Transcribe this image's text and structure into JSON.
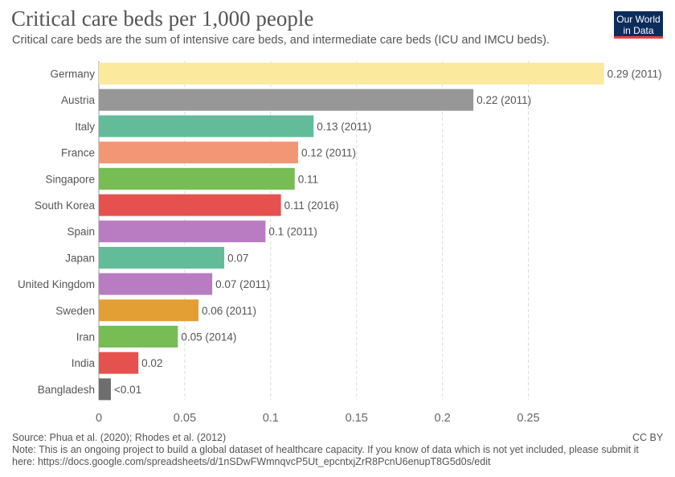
{
  "header": {
    "title": "Critical care beds per 1,000 people",
    "subtitle": "Critical care beds are the sum of intensive care beds, and intermediate care beds (ICU and IMCU beds).",
    "logo_line1": "Our World",
    "logo_line2": "in Data"
  },
  "footer": {
    "source": "Source: Phua et al. (2020); Rhodes et al. (2012)",
    "note_line1": "Note: This is an ongoing project to build a global dataset of healthcare capacity. If you know of data which is not yet included, please submit it",
    "note_line2": "here: https://docs.google.com/spreadsheets/d/1nSDwFWmnqvcP5Ut_epcntxjZrR8PcnU6enupT8G5d0s/edit",
    "license": "CC BY"
  },
  "chart_data": {
    "type": "bar",
    "orientation": "horizontal",
    "title": "Critical care beds per 1,000 people",
    "xlim": [
      0,
      0.29
    ],
    "xticks": [
      0,
      0.05,
      0.1,
      0.15,
      0.2,
      0.25
    ],
    "xtick_labels": [
      "0",
      "0.05",
      "0.1",
      "0.15",
      "0.2",
      "0.25"
    ],
    "grid": true,
    "categories": [
      "Germany",
      "Austria",
      "Italy",
      "France",
      "Singapore",
      "South Korea",
      "Spain",
      "Japan",
      "United Kingdom",
      "Sweden",
      "Iran",
      "India",
      "Bangladesh"
    ],
    "values": [
      0.294,
      0.218,
      0.125,
      0.116,
      0.114,
      0.106,
      0.097,
      0.073,
      0.066,
      0.058,
      0.046,
      0.023,
      0.007
    ],
    "labels": [
      "0.29 (2011)",
      "0.22 (2011)",
      "0.13 (2011)",
      "0.12 (2011)",
      "0.11",
      "0.11 (2016)",
      "0.1 (2011)",
      "0.07",
      "0.07 (2011)",
      "0.06 (2011)",
      "0.05 (2014)",
      "0.02",
      "<0.01"
    ],
    "colors": [
      "#fbe99d",
      "#979797",
      "#62bb99",
      "#f39676",
      "#77bc55",
      "#e5514e",
      "#b97cc2",
      "#62bb99",
      "#b97cc2",
      "#e39e34",
      "#77bc55",
      "#e5514e",
      "#6e6e6e"
    ]
  }
}
